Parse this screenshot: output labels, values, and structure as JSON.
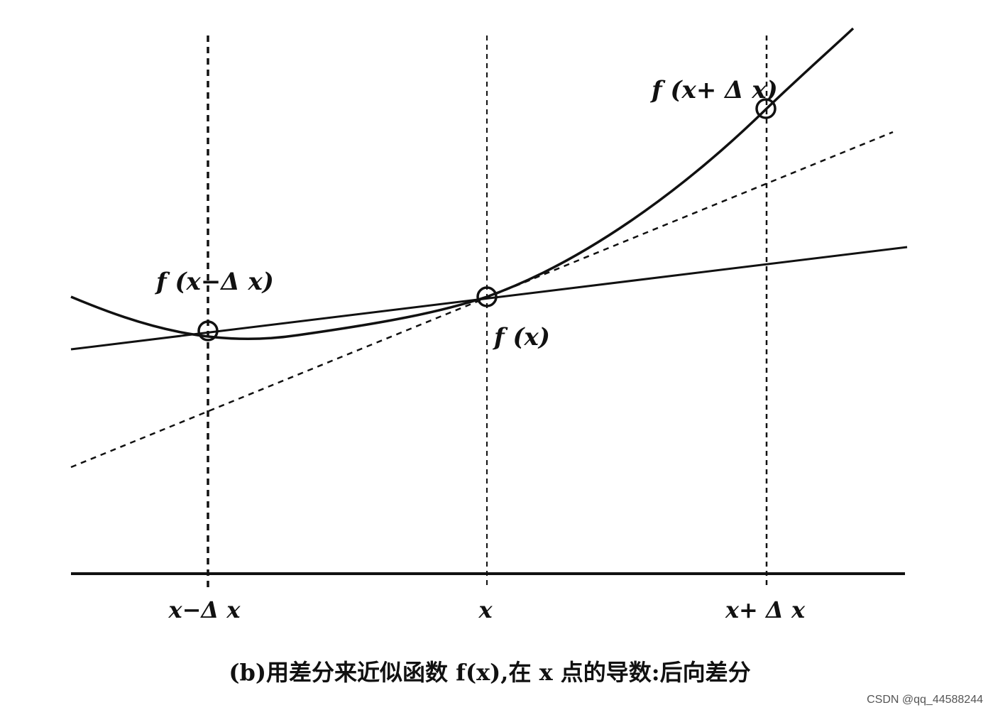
{
  "labels": {
    "f_plus": "f (x+ Δ x)",
    "f_minus": "f (x−Δ x)",
    "f_x": "f (x)"
  },
  "axis_labels": [
    "x−Δ x",
    "x",
    "x+ Δ x"
  ],
  "caption": "(b)用差分来近似函数 f(x),在 x 点的导数:后向差分",
  "watermark": "CSDN @qq_44588244"
}
